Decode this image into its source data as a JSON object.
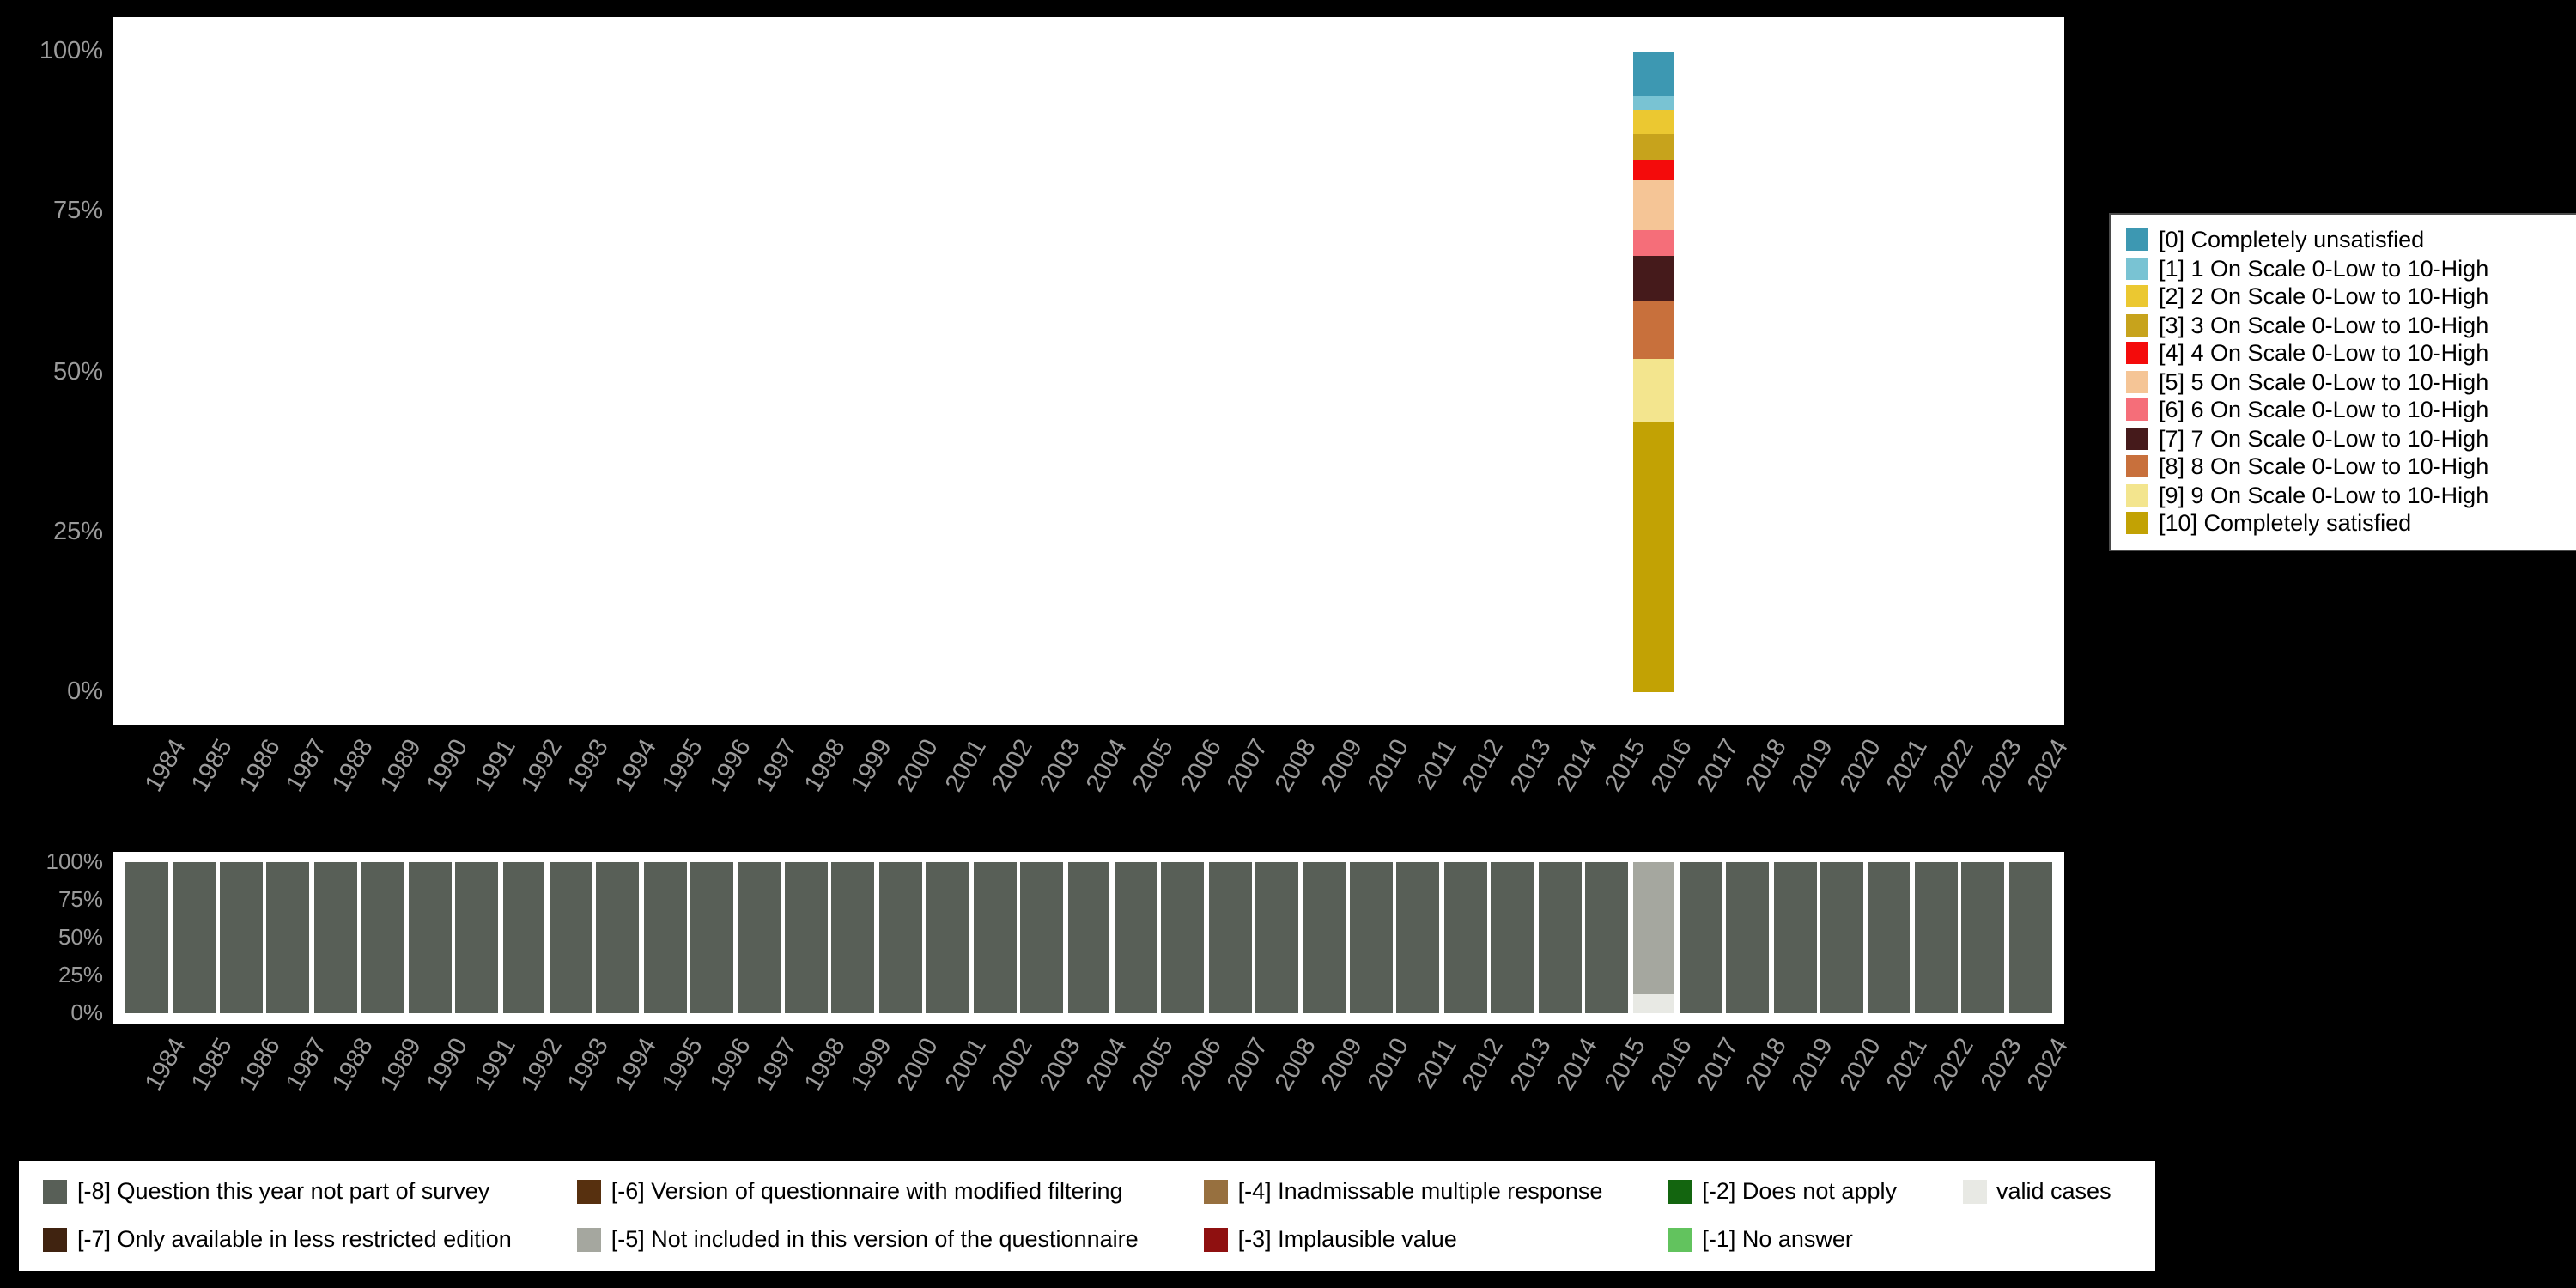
{
  "page": {
    "background": "#000000",
    "plot_background": "#ffffff",
    "axis_text_color": "#9b9b9b",
    "legend_text_color": "#000000"
  },
  "chart_data": [
    {
      "type": "bar",
      "name": "answer-distribution",
      "stacked": true,
      "title": "",
      "xlabel": "",
      "ylabel": "",
      "ylim": [
        0,
        100
      ],
      "grid": false,
      "legend_position": "right",
      "y_tick_labels": [
        "100%",
        "75%",
        "50%",
        "25%",
        "0%"
      ],
      "categories": [
        "1984",
        "1985",
        "1986",
        "1987",
        "1988",
        "1989",
        "1990",
        "1991",
        "1992",
        "1993",
        "1994",
        "1995",
        "1996",
        "1997",
        "1998",
        "1999",
        "2000",
        "2001",
        "2002",
        "2003",
        "2004",
        "2005",
        "2006",
        "2007",
        "2008",
        "2009",
        "2010",
        "2011",
        "2012",
        "2013",
        "2014",
        "2015",
        "2016",
        "2017",
        "2018",
        "2019",
        "2020",
        "2021",
        "2022",
        "2023",
        "2024"
      ],
      "series": [
        {
          "name": "[0] Completely unsatisfied",
          "color": "#3d98b2",
          "default": 0,
          "values": {
            "2016": 7
          }
        },
        {
          "name": "[1] 1 On Scale 0-Low to 10-High",
          "color": "#79c3d3",
          "default": 0,
          "values": {
            "2016": 2
          }
        },
        {
          "name": "[2] 2 On Scale 0-Low to 10-High",
          "color": "#ebc831",
          "default": 0,
          "values": {
            "2016": 4
          }
        },
        {
          "name": "[3] 3 On Scale 0-Low to 10-High",
          "color": "#c7a31c",
          "default": 0,
          "values": {
            "2016": 4
          }
        },
        {
          "name": "[4] 4 On Scale 0-Low to 10-High",
          "color": "#f40b0b",
          "default": 0,
          "values": {
            "2016": 3
          }
        },
        {
          "name": "[5] 5 On Scale 0-Low to 10-High",
          "color": "#f5c596",
          "default": 0,
          "values": {
            "2016": 8
          }
        },
        {
          "name": "[6] 6 On Scale 0-Low to 10-High",
          "color": "#f56e79",
          "default": 0,
          "values": {
            "2016": 4
          }
        },
        {
          "name": "[7] 7 On Scale 0-Low to 10-High",
          "color": "#451a1b",
          "default": 0,
          "values": {
            "2016": 7
          }
        },
        {
          "name": "[8] 8 On Scale 0-Low to 10-High",
          "color": "#c8703c",
          "default": 0,
          "values": {
            "2016": 9
          }
        },
        {
          "name": "[9] 9 On Scale 0-Low to 10-High",
          "color": "#f3e58e",
          "default": 0,
          "values": {
            "2016": 10
          }
        },
        {
          "name": "[10] Completely satisfied",
          "color": "#c2a204",
          "default": 0,
          "values": {
            "2016": 42
          }
        }
      ]
    },
    {
      "type": "bar",
      "name": "missings-and-valid-cases",
      "stacked": true,
      "title": "",
      "xlabel": "",
      "ylabel": "",
      "ylim": [
        0,
        100
      ],
      "grid": false,
      "legend_position": "bottom",
      "y_tick_labels": [
        "100%",
        "75%",
        "50%",
        "25%",
        "0%"
      ],
      "categories": [
        "1984",
        "1985",
        "1986",
        "1987",
        "1988",
        "1989",
        "1990",
        "1991",
        "1992",
        "1993",
        "1994",
        "1995",
        "1996",
        "1997",
        "1998",
        "1999",
        "2000",
        "2001",
        "2002",
        "2003",
        "2004",
        "2005",
        "2006",
        "2007",
        "2008",
        "2009",
        "2010",
        "2011",
        "2012",
        "2013",
        "2014",
        "2015",
        "2016",
        "2017",
        "2018",
        "2019",
        "2020",
        "2021",
        "2022",
        "2023",
        "2024"
      ],
      "series": [
        {
          "name": "[-8] Question this year not part of survey",
          "color": "#585f57",
          "default": 100,
          "values": {
            "2016": 0
          }
        },
        {
          "name": "[-7] Only available in less restricted edition",
          "color": "#402310",
          "default": 0,
          "values": {}
        },
        {
          "name": "[-6] Version of questionnaire with modified filtering",
          "color": "#57300f",
          "default": 0,
          "values": {}
        },
        {
          "name": "[-5] Not included in this version of the questionnaire",
          "color": "#a5a79f",
          "default": 0,
          "values": {
            "2016": 87
          }
        },
        {
          "name": "[-4] Inadmissable multiple response",
          "color": "#97703f",
          "default": 0,
          "values": {}
        },
        {
          "name": "[-3] Implausible value",
          "color": "#8f1010",
          "default": 0,
          "values": {}
        },
        {
          "name": "[-2] Does not apply",
          "color": "#13650f",
          "default": 0,
          "values": {}
        },
        {
          "name": "[-1] No answer",
          "color": "#62c35e",
          "default": 0,
          "values": {}
        },
        {
          "name": "valid cases",
          "color": "#e8e9e4",
          "default": 0,
          "values": {
            "2016": 13
          }
        }
      ]
    }
  ]
}
